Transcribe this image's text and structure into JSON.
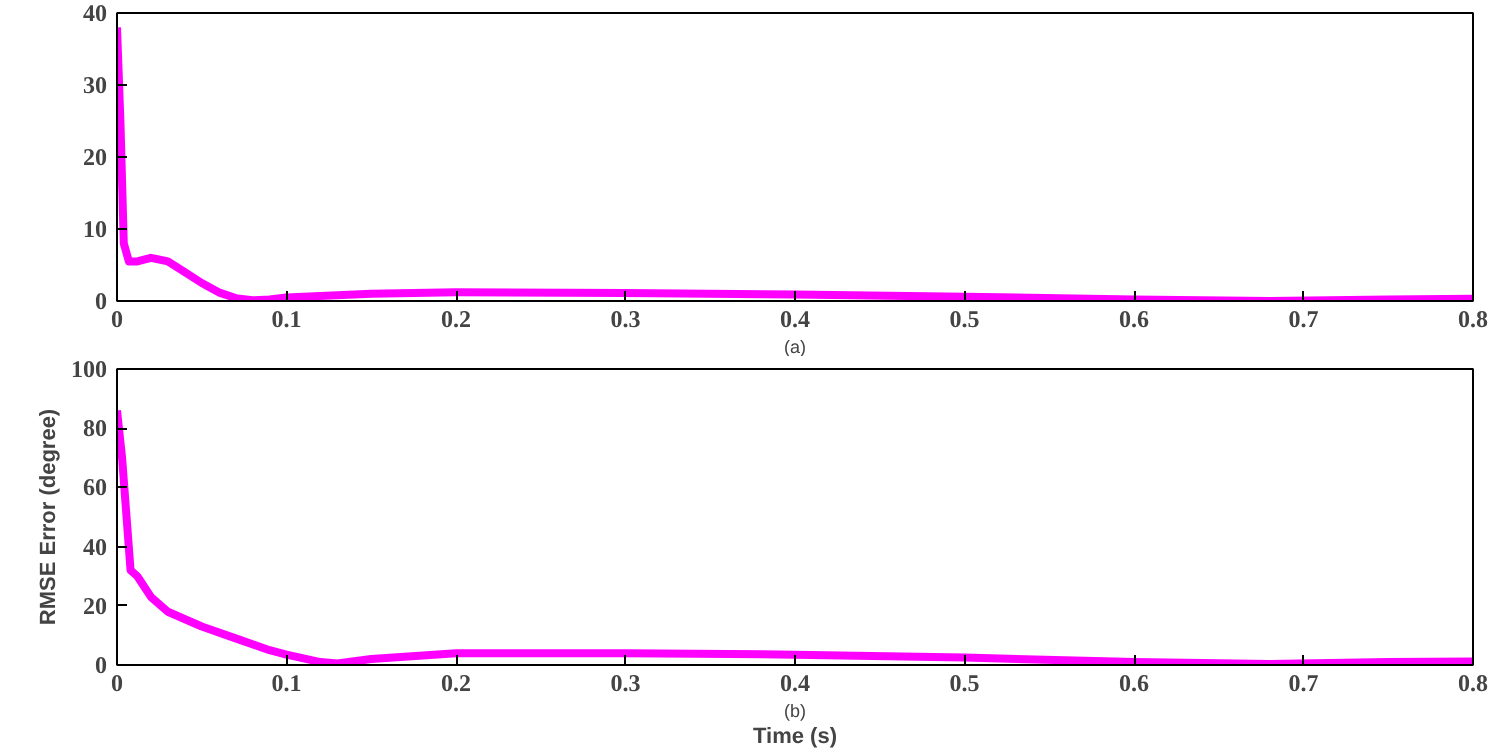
{
  "chart_data": [
    {
      "type": "line",
      "xlim": [
        0,
        0.8
      ],
      "ylim": [
        0,
        40
      ],
      "xticks": [
        0,
        0.1,
        0.2,
        0.3,
        0.4,
        0.5,
        0.6,
        0.7,
        0.8
      ],
      "yticks": [
        0,
        10,
        20,
        30,
        40
      ],
      "grid": false,
      "annotations": [
        "(a)"
      ],
      "series": [
        {
          "color": "#ff00ff",
          "x": [
            0,
            0.002,
            0.004,
            0.007,
            0.012,
            0.02,
            0.03,
            0.04,
            0.05,
            0.06,
            0.07,
            0.08,
            0.09,
            0.1,
            0.15,
            0.2,
            0.3,
            0.4,
            0.5,
            0.6,
            0.68,
            0.75,
            0.8
          ],
          "values": [
            38,
            25,
            8,
            5.5,
            5.5,
            6,
            5.5,
            4,
            2.5,
            1.2,
            0.4,
            0.1,
            0.2,
            0.5,
            1,
            1.2,
            1.1,
            0.9,
            0.6,
            0.2,
            0,
            0.2,
            0.3
          ]
        }
      ]
    },
    {
      "type": "line",
      "xlabel": "Time (s)",
      "ylabel": "RMSE Error (degree)",
      "xlim": [
        0,
        0.8
      ],
      "ylim": [
        0,
        100
      ],
      "xticks": [
        0,
        0.1,
        0.2,
        0.3,
        0.4,
        0.5,
        0.6,
        0.7,
        0.8
      ],
      "yticks": [
        0,
        20,
        40,
        60,
        80,
        100
      ],
      "grid": false,
      "annotations": [
        "(b)"
      ],
      "series": [
        {
          "color": "#ff00ff",
          "x": [
            0,
            0.003,
            0.008,
            0.012,
            0.02,
            0.03,
            0.05,
            0.07,
            0.09,
            0.1,
            0.12,
            0.13,
            0.15,
            0.2,
            0.3,
            0.4,
            0.5,
            0.6,
            0.68,
            0.75,
            0.8
          ],
          "values": [
            86,
            70,
            32,
            30,
            23,
            18,
            13,
            9,
            5,
            3.5,
            1,
            0.5,
            2,
            4,
            4,
            3.5,
            2.5,
            1,
            0.3,
            1,
            1.2
          ]
        }
      ]
    }
  ]
}
